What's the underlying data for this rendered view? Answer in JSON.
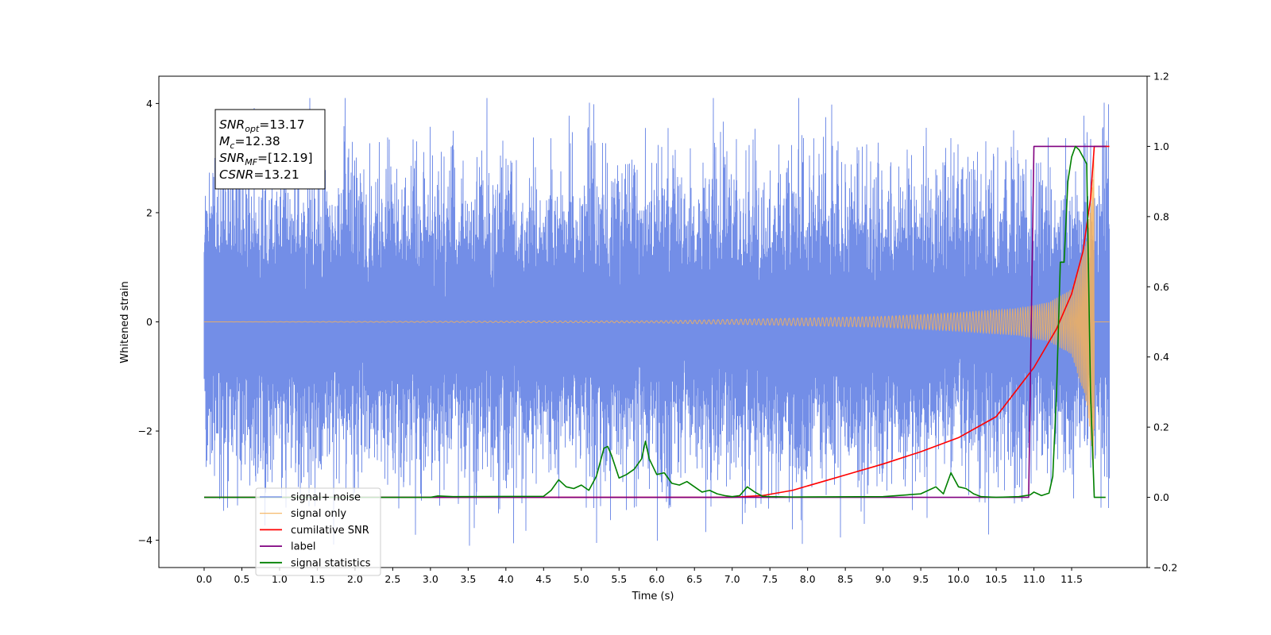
{
  "chart_data": {
    "type": "line",
    "title": "",
    "xlabel": "Time (s)",
    "ylabel": "Whitened strain",
    "y2label": "",
    "xlim": [
      -0.6,
      12.5
    ],
    "ylim": [
      -4.5,
      4.5
    ],
    "y2lim": [
      -0.2,
      1.2
    ],
    "x_ticks": [
      0.0,
      0.5,
      1.0,
      1.5,
      2.0,
      2.5,
      3.0,
      3.5,
      4.0,
      4.5,
      5.0,
      5.5,
      6.0,
      6.5,
      7.0,
      7.5,
      8.0,
      8.5,
      9.0,
      9.5,
      10.0,
      10.5,
      11.0,
      11.5
    ],
    "x_tick_labels": [
      "0.0",
      "0.5",
      "1.0",
      "1.5",
      "2.0",
      "2.5",
      "3.0",
      "3.5",
      "4.0",
      "4.5",
      "5.0",
      "5.5",
      "6.0",
      "6.5",
      "7.0",
      "7.5",
      "8.0",
      "8.5",
      "9.0",
      "9.5",
      "10.0",
      "10.5",
      "11.0",
      "11.5"
    ],
    "y_ticks": [
      4,
      2,
      0,
      -2,
      -4
    ],
    "y_tick_labels": [
      "4",
      "2",
      "0",
      "−2",
      "−4"
    ],
    "y2_ticks": [
      1.2,
      1.0,
      0.8,
      0.6,
      0.4,
      0.2,
      0.0,
      -0.2
    ],
    "y2_tick_labels": [
      "1.2",
      "1.0",
      "0.8",
      "0.6",
      "0.4",
      "0.2",
      "0.0",
      "−0.2"
    ],
    "grid": false,
    "legend_position": "lower-left",
    "annotation": [
      {
        "base": "SNR",
        "sub": "opt",
        "rest": "=13.17"
      },
      {
        "base": "M",
        "sub": "c",
        "rest": "=12.38"
      },
      {
        "base": "SNR",
        "sub": "MF",
        "rest": "=[12.19]"
      },
      {
        "base": "CSNR",
        "sub": "",
        "rest": "=13.21"
      }
    ],
    "series": [
      {
        "name": "signal+ noise",
        "color": "#6b88e6",
        "axis": "left",
        "description_type": "noise",
        "t_start": 0.0,
        "t_end": 12.0,
        "approx_std": 1.0,
        "approx_peak_range": [
          -4.1,
          4.1
        ],
        "spikes": [
          [
            3.75,
            4.1
          ],
          [
            5.2,
            -4.05
          ],
          [
            2.8,
            -3.9
          ],
          [
            6.65,
            -3.85
          ],
          [
            8.75,
            -3.7
          ],
          [
            7.8,
            -3.8
          ],
          [
            5.85,
            3.55
          ],
          [
            6.15,
            3.55
          ],
          [
            3.3,
            3.5
          ],
          [
            11.75,
            3.35
          ]
        ]
      },
      {
        "name": "signal only",
        "color": "#f4b15a",
        "axis": "left",
        "description_type": "chirp",
        "t_start": 0.0,
        "t_end": 11.8,
        "envelope": [
          [
            0.0,
            0.0
          ],
          [
            6.0,
            0.02
          ],
          [
            9.0,
            0.1
          ],
          [
            10.0,
            0.17
          ],
          [
            10.8,
            0.25
          ],
          [
            11.2,
            0.36
          ],
          [
            11.5,
            0.6
          ],
          [
            11.7,
            1.5
          ],
          [
            11.78,
            2.6
          ],
          [
            11.8,
            3.2
          ]
        ]
      },
      {
        "name": "cumilative SNR",
        "color": "#ff0000",
        "axis": "right",
        "x": [
          0.0,
          7.0,
          7.4,
          7.8,
          8.2,
          8.6,
          9.0,
          9.5,
          10.0,
          10.5,
          11.0,
          11.3,
          11.5,
          11.65,
          11.75,
          11.8,
          12.0
        ],
        "y": [
          0.0,
          0.0,
          0.005,
          0.02,
          0.045,
          0.07,
          0.095,
          0.13,
          0.17,
          0.23,
          0.37,
          0.48,
          0.58,
          0.7,
          0.85,
          1.0,
          1.0
        ]
      },
      {
        "name": "label",
        "color": "#800080",
        "axis": "right",
        "x": [
          0.0,
          10.93,
          11.0,
          11.95
        ],
        "y": [
          0.0,
          0.0,
          1.0,
          1.0
        ]
      },
      {
        "name": "signal statistics",
        "color": "#008000",
        "axis": "right",
        "x": [
          0.0,
          3.0,
          3.1,
          3.3,
          4.5,
          4.6,
          4.7,
          4.8,
          4.9,
          5.0,
          5.1,
          5.2,
          5.3,
          5.35,
          5.4,
          5.5,
          5.6,
          5.7,
          5.8,
          5.85,
          5.9,
          6.0,
          6.1,
          6.2,
          6.3,
          6.4,
          6.5,
          6.6,
          6.7,
          6.8,
          6.9,
          7.0,
          7.1,
          7.2,
          7.3,
          7.4,
          7.5,
          7.8,
          9.0,
          9.5,
          9.6,
          9.7,
          9.8,
          9.9,
          10.0,
          10.1,
          10.2,
          10.3,
          10.5,
          10.8,
          10.95,
          11.0,
          11.05,
          11.1,
          11.2,
          11.25,
          11.3,
          11.35,
          11.4,
          11.45,
          11.5,
          11.55,
          11.6,
          11.7,
          11.75,
          11.8,
          11.85,
          11.9,
          11.95
        ],
        "y": [
          0.0,
          0.0,
          0.004,
          0.002,
          0.003,
          0.02,
          0.05,
          0.03,
          0.025,
          0.035,
          0.02,
          0.06,
          0.14,
          0.145,
          0.12,
          0.055,
          0.065,
          0.08,
          0.11,
          0.16,
          0.11,
          0.065,
          0.07,
          0.04,
          0.035,
          0.045,
          0.03,
          0.015,
          0.02,
          0.01,
          0.005,
          0.002,
          0.005,
          0.03,
          0.015,
          0.003,
          0.002,
          0.001,
          0.002,
          0.01,
          0.02,
          0.03,
          0.01,
          0.07,
          0.03,
          0.025,
          0.01,
          0.002,
          0.0,
          0.002,
          0.007,
          0.015,
          0.01,
          0.005,
          0.012,
          0.06,
          0.3,
          0.67,
          0.67,
          0.9,
          0.97,
          1.0,
          0.99,
          0.95,
          0.3,
          0.0,
          0.0,
          0.0,
          0.0
        ]
      }
    ]
  }
}
